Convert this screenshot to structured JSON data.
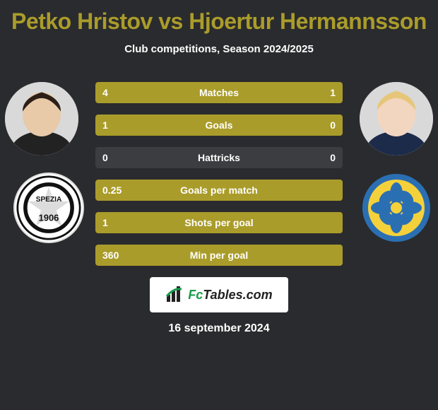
{
  "title": "Petko Hristov vs Hjoertur Hermannsson",
  "subtitle": "Club competitions, Season 2024/2025",
  "date": "16 september 2024",
  "brand": "FcTables.com",
  "colors": {
    "accent": "#aa9c2a",
    "bar_bg": "#3c3d40",
    "page_bg": "#2a2b2e",
    "text": "#ffffff"
  },
  "player_left": {
    "name": "Petko Hristov",
    "skin": "#e8c9a8",
    "hair": "#2b1f16"
  },
  "player_right": {
    "name": "Hjoertur Hermannsson",
    "skin": "#f3d6bf",
    "hair": "#e6c77a"
  },
  "club_left": {
    "name": "Spezia",
    "year": "1906"
  },
  "club_right": {
    "name": "Panetolikos"
  },
  "stats": [
    {
      "label": "Matches",
      "left_val": "4",
      "right_val": "1",
      "left_pct": 80,
      "right_pct": 20
    },
    {
      "label": "Goals",
      "left_val": "1",
      "right_val": "0",
      "left_pct": 100,
      "right_pct": 0
    },
    {
      "label": "Hattricks",
      "left_val": "0",
      "right_val": "0",
      "left_pct": 0,
      "right_pct": 0
    },
    {
      "label": "Goals per match",
      "left_val": "0.25",
      "right_val": "",
      "left_pct": 100,
      "right_pct": 0
    },
    {
      "label": "Shots per goal",
      "left_val": "1",
      "right_val": "",
      "left_pct": 100,
      "right_pct": 0
    },
    {
      "label": "Min per goal",
      "left_val": "360",
      "right_val": "",
      "left_pct": 100,
      "right_pct": 0
    }
  ]
}
